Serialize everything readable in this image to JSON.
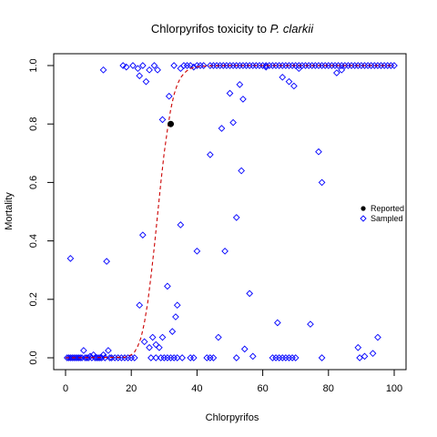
{
  "chart_data": {
    "type": "scatter",
    "title_main": "Chlorpyrifos toxicity to ",
    "title_italic": "P. clarkii",
    "xlabel": "Chlorpyrifos",
    "ylabel": "Mortality",
    "xlim": [
      0,
      100
    ],
    "ylim": [
      0,
      1
    ],
    "xticks": [
      0,
      20,
      40,
      60,
      80,
      100
    ],
    "yticks": [
      0.0,
      0.2,
      0.4,
      0.6,
      0.8,
      1.0
    ],
    "xtick_labels": [
      "0",
      "20",
      "40",
      "60",
      "80",
      "100"
    ],
    "ytick_labels": [
      "0.0",
      "0.2",
      "0.4",
      "0.6",
      "0.8",
      "1.0"
    ],
    "legend": {
      "placement": "right",
      "entries": [
        {
          "label": "Reported",
          "marker": "filled-circle",
          "color": "#000000"
        },
        {
          "label": "Sampled",
          "marker": "open-diamond",
          "color": "#0000ff"
        }
      ]
    },
    "series": [
      {
        "name": "Reported",
        "color": "#000000",
        "marker": "filled-circle",
        "points": [
          [
            32,
            0.8
          ]
        ]
      },
      {
        "name": "Sampled",
        "color": "#0000ff",
        "marker": "open-diamond",
        "points": [
          [
            1.5,
            0.34
          ],
          [
            12.5,
            0.33
          ],
          [
            11.5,
            0.985
          ],
          [
            17.5,
            1.0
          ],
          [
            18.5,
            0.995
          ],
          [
            20.5,
            1.0
          ],
          [
            22,
            0.99
          ],
          [
            23.5,
            1.0
          ],
          [
            22.5,
            0.965
          ],
          [
            24.5,
            0.945
          ],
          [
            25.5,
            0.985
          ],
          [
            27,
            1.0
          ],
          [
            28,
            0.985
          ],
          [
            29.5,
            0.815
          ],
          [
            31.5,
            0.895
          ],
          [
            33,
            1.0
          ],
          [
            35,
            0.99
          ],
          [
            36,
            1.0
          ],
          [
            37,
            1.0
          ],
          [
            38,
            1.0
          ],
          [
            39,
            0.995
          ],
          [
            40,
            1.0
          ],
          [
            41,
            1.0
          ],
          [
            42,
            1.0
          ],
          [
            22.5,
            0.18
          ],
          [
            23.5,
            0.42
          ],
          [
            24,
            0.055
          ],
          [
            25.5,
            0.035
          ],
          [
            26.5,
            0.07
          ],
          [
            27.5,
            0.045
          ],
          [
            28.5,
            0.035
          ],
          [
            29.5,
            0.07
          ],
          [
            31,
            0.245
          ],
          [
            32.5,
            0.09
          ],
          [
            33.5,
            0.14
          ],
          [
            34,
            0.18
          ],
          [
            35,
            0.455
          ],
          [
            40,
            0.365
          ],
          [
            44,
            0.695
          ],
          [
            46.5,
            0.07
          ],
          [
            47.5,
            0.785
          ],
          [
            48.5,
            0.365
          ],
          [
            50,
            0.905
          ],
          [
            51,
            0.805
          ],
          [
            52,
            0.48
          ],
          [
            53,
            0.935
          ],
          [
            53.5,
            0.64
          ],
          [
            54,
            0.885
          ],
          [
            54.5,
            0.03
          ],
          [
            56,
            0.22
          ],
          [
            57,
            0.005
          ],
          [
            64.5,
            0.12
          ],
          [
            66,
            0.96
          ],
          [
            68,
            0.945
          ],
          [
            69.5,
            0.93
          ],
          [
            74.5,
            0.115
          ],
          [
            77,
            0.705
          ],
          [
            78,
            0.6
          ],
          [
            89,
            0.035
          ],
          [
            91,
            0.005
          ],
          [
            93.5,
            0.015
          ],
          [
            95,
            0.07
          ],
          [
            0.5,
            0
          ],
          [
            1,
            0
          ],
          [
            1.5,
            0
          ],
          [
            2,
            0
          ],
          [
            2.5,
            0
          ],
          [
            3,
            0
          ],
          [
            3.5,
            0
          ],
          [
            4,
            0
          ],
          [
            4.5,
            0
          ],
          [
            5,
            0
          ],
          [
            5.5,
            0.025
          ],
          [
            6,
            0
          ],
          [
            6.5,
            0
          ],
          [
            7,
            0
          ],
          [
            7.5,
            0.005
          ],
          [
            8,
            0
          ],
          [
            8.5,
            0.01
          ],
          [
            9,
            0
          ],
          [
            9.5,
            0
          ],
          [
            10,
            0
          ],
          [
            10.5,
            0
          ],
          [
            11,
            0
          ],
          [
            11.5,
            0.01
          ],
          [
            12,
            0
          ],
          [
            13,
            0.025
          ],
          [
            13.5,
            0
          ],
          [
            14,
            0
          ],
          [
            15,
            0
          ],
          [
            16,
            0
          ],
          [
            17,
            0
          ],
          [
            18,
            0
          ],
          [
            19,
            0
          ],
          [
            20,
            0
          ],
          [
            21,
            0
          ],
          [
            26,
            0
          ],
          [
            27.5,
            0
          ],
          [
            29,
            0
          ],
          [
            30,
            0
          ],
          [
            31,
            0
          ],
          [
            32,
            0
          ],
          [
            33,
            0
          ],
          [
            34,
            0
          ],
          [
            35.5,
            0
          ],
          [
            38,
            0
          ],
          [
            39,
            0
          ],
          [
            43,
            0
          ],
          [
            44,
            0
          ],
          [
            45,
            0
          ],
          [
            52,
            0
          ],
          [
            63,
            0
          ],
          [
            64,
            0
          ],
          [
            65,
            0
          ],
          [
            66,
            0
          ],
          [
            67,
            0
          ],
          [
            68,
            0
          ],
          [
            69,
            0
          ],
          [
            70,
            0
          ],
          [
            78,
            0
          ],
          [
            89.5,
            0
          ],
          [
            44,
            1.0
          ],
          [
            45,
            1.0
          ],
          [
            46,
            1.0
          ],
          [
            47,
            1.0
          ],
          [
            48,
            1.0
          ],
          [
            49,
            1.0
          ],
          [
            50,
            1.0
          ],
          [
            51,
            1.0
          ],
          [
            52,
            1.0
          ],
          [
            53,
            1.0
          ],
          [
            54,
            1.0
          ],
          [
            55,
            1.0
          ],
          [
            56,
            1.0
          ],
          [
            57,
            1.0
          ],
          [
            58,
            1.0
          ],
          [
            59,
            1.0
          ],
          [
            60,
            1.0
          ],
          [
            61,
            1.0
          ],
          [
            62,
            1.0
          ],
          [
            63,
            1.0
          ],
          [
            64,
            1.0
          ],
          [
            65,
            1.0
          ],
          [
            66,
            1.0
          ],
          [
            67,
            1.0
          ],
          [
            68,
            1.0
          ],
          [
            69,
            1.0
          ],
          [
            70,
            1.0
          ],
          [
            71,
            1.0
          ],
          [
            72,
            1.0
          ],
          [
            73,
            1.0
          ],
          [
            74,
            1.0
          ],
          [
            75,
            1.0
          ],
          [
            76,
            1.0
          ],
          [
            77,
            1.0
          ],
          [
            78,
            1.0
          ],
          [
            79,
            1.0
          ],
          [
            80,
            1.0
          ],
          [
            81,
            1.0
          ],
          [
            82,
            1.0
          ],
          [
            83,
            1.0
          ],
          [
            84,
            1.0
          ],
          [
            85,
            1.0
          ],
          [
            86,
            1.0
          ],
          [
            87,
            1.0
          ],
          [
            88,
            1.0
          ],
          [
            89,
            1.0
          ],
          [
            90,
            1.0
          ],
          [
            91,
            1.0
          ],
          [
            92,
            1.0
          ],
          [
            93,
            1.0
          ],
          [
            94,
            1.0
          ],
          [
            95,
            1.0
          ],
          [
            96,
            1.0
          ],
          [
            97,
            1.0
          ],
          [
            98,
            1.0
          ],
          [
            99,
            1.0
          ],
          [
            100,
            1.0
          ],
          [
            82.5,
            0.975
          ],
          [
            84,
            0.985
          ],
          [
            71,
            0.99
          ],
          [
            61,
            0.995
          ]
        ]
      }
    ],
    "curve": {
      "color": "#cc0000",
      "style": "dashed",
      "points": [
        [
          0,
          0
        ],
        [
          18,
          0.002
        ],
        [
          20,
          0.01
        ],
        [
          21,
          0.02
        ],
        [
          22,
          0.04
        ],
        [
          23,
          0.07
        ],
        [
          24,
          0.12
        ],
        [
          25,
          0.19
        ],
        [
          26,
          0.28
        ],
        [
          27,
          0.38
        ],
        [
          28,
          0.49
        ],
        [
          29,
          0.6
        ],
        [
          30,
          0.7
        ],
        [
          31,
          0.78
        ],
        [
          32,
          0.85
        ],
        [
          33,
          0.9
        ],
        [
          34,
          0.935
        ],
        [
          35,
          0.958
        ],
        [
          36,
          0.973
        ],
        [
          37,
          0.983
        ],
        [
          38,
          0.99
        ],
        [
          40,
          0.996
        ],
        [
          44,
          0.999
        ],
        [
          50,
          1.0
        ],
        [
          100,
          1.0
        ]
      ]
    }
  }
}
